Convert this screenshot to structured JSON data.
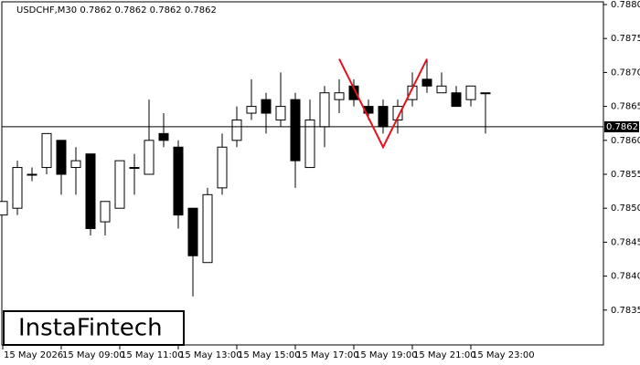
{
  "chart_data": {
    "type": "candlestick",
    "title": "USDCHF,M30  0.7862 0.7862 0.7862 0.7862",
    "categories": [
      "15 May 2026",
      null,
      null,
      null,
      "15 May 09:00",
      null,
      null,
      null,
      "15 May 11:00",
      null,
      null,
      null,
      "15 May 13:00",
      null,
      null,
      null,
      "15 May 15:00",
      null,
      null,
      null,
      "15 May 17:00",
      null,
      null,
      null,
      "15 May 19:00",
      null,
      null,
      null,
      "15 May 21:00",
      null,
      null,
      null,
      "15 May 23:00",
      null
    ],
    "open": [
      0.7849,
      0.785,
      0.7855,
      0.7856,
      0.786,
      0.7856,
      0.7858,
      0.7848,
      0.785,
      0.7856,
      0.7855,
      0.7861,
      0.7859,
      0.785,
      0.7842,
      0.7853,
      0.786,
      0.7864,
      0.7866,
      0.7863,
      0.7866,
      0.7856,
      0.7862,
      0.7866,
      0.7868,
      0.7865,
      0.7865,
      0.7863,
      0.7866,
      0.7869,
      0.7867,
      0.7867,
      0.7866,
      0.7867
    ],
    "high": [
      0.7851,
      0.7857,
      0.7856,
      0.7861,
      0.786,
      0.7859,
      0.7858,
      0.7851,
      0.7857,
      0.7858,
      0.7866,
      0.7864,
      0.786,
      0.785,
      0.7853,
      0.7861,
      0.7865,
      0.7869,
      0.7867,
      0.787,
      0.7867,
      0.7866,
      0.7868,
      0.7869,
      0.7869,
      0.7866,
      0.7866,
      0.7866,
      0.787,
      0.7872,
      0.787,
      0.7868,
      0.7868,
      0.7867
    ],
    "low": [
      0.7849,
      0.7849,
      0.7854,
      0.7855,
      0.7852,
      0.7852,
      0.7846,
      0.7846,
      0.785,
      0.7852,
      0.7855,
      0.7859,
      0.7847,
      0.7837,
      0.7842,
      0.7852,
      0.7859,
      0.7863,
      0.7861,
      0.7862,
      0.7853,
      0.7856,
      0.7859,
      0.7864,
      0.7865,
      0.7863,
      0.7861,
      0.7861,
      0.7865,
      0.7867,
      0.7867,
      0.7865,
      0.7865,
      0.7861
    ],
    "close": [
      0.7851,
      0.7856,
      0.7855,
      0.7861,
      0.7855,
      0.7857,
      0.7847,
      0.7851,
      0.7857,
      0.7856,
      0.786,
      0.786,
      0.7849,
      0.7843,
      0.7852,
      0.7859,
      0.7863,
      0.7865,
      0.7864,
      0.7865,
      0.7857,
      0.7863,
      0.7867,
      0.7867,
      0.7866,
      0.7864,
      0.7862,
      0.7865,
      0.7868,
      0.7868,
      0.7868,
      0.7865,
      0.7868,
      0.7867
    ],
    "up_color": "#ffffff",
    "down_color": "#000000",
    "edge_color": "#000000",
    "ylim": [
      0.783,
      0.788
    ],
    "yticks": [
      {
        "value": 0.7835,
        "label": "0.7835"
      },
      {
        "value": 0.784,
        "label": "0.7840"
      },
      {
        "value": 0.7845,
        "label": "0.7845"
      },
      {
        "value": 0.785,
        "label": "0.7850"
      },
      {
        "value": 0.7855,
        "label": "0.7855"
      },
      {
        "value": 0.786,
        "label": "0.7860"
      },
      {
        "value": 0.7865,
        "label": "0.7865"
      },
      {
        "value": 0.787,
        "label": "0.7870"
      },
      {
        "value": 0.7875,
        "label": "0.7875"
      },
      {
        "value": 0.788,
        "label": "0.7880"
      }
    ],
    "price_line": {
      "value": 0.7862,
      "label": "0.7862"
    },
    "pattern": {
      "color": "#e8101c",
      "at": [
        23,
        26,
        29
      ],
      "values": [
        0.7872,
        0.7859,
        0.7872
      ]
    },
    "logo": "InstaFintech"
  }
}
